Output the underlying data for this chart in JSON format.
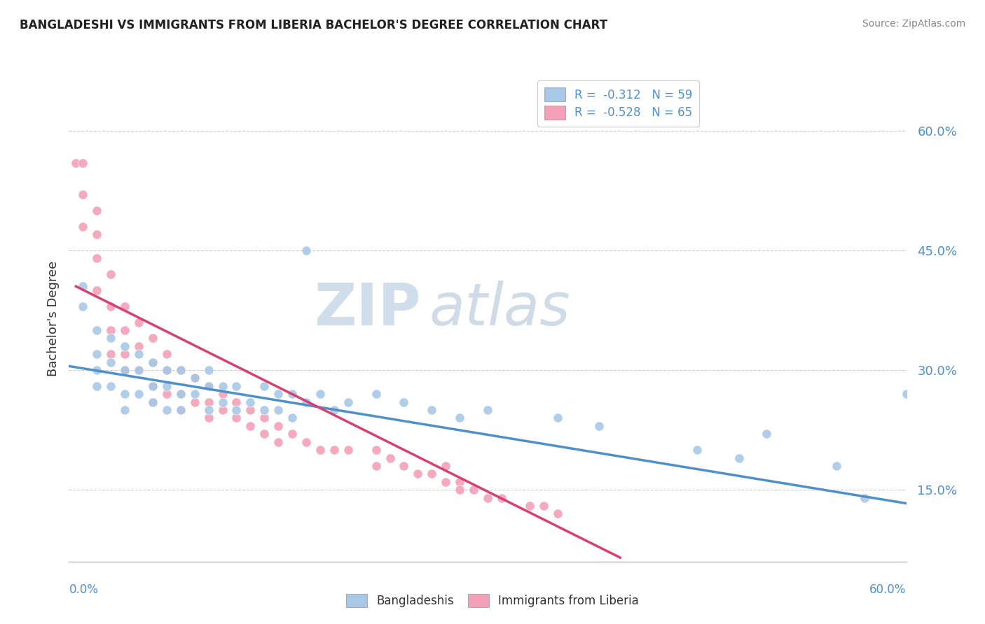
{
  "title": "BANGLADESHI VS IMMIGRANTS FROM LIBERIA BACHELOR'S DEGREE CORRELATION CHART",
  "source": "Source: ZipAtlas.com",
  "ylabel": "Bachelor's Degree",
  "ytick_labels": [
    "15.0%",
    "30.0%",
    "45.0%",
    "60.0%"
  ],
  "ytick_values": [
    0.15,
    0.3,
    0.45,
    0.6
  ],
  "xlim": [
    0.0,
    0.6
  ],
  "ylim": [
    0.06,
    0.67
  ],
  "blue_color": "#a8c8e8",
  "pink_color": "#f4a0b8",
  "blue_line_color": "#5090c8",
  "pink_line_color": "#d84070",
  "watermark_zip": "ZIP",
  "watermark_atlas": "atlas",
  "blue_trend_x0": 0.0,
  "blue_trend_y0": 0.305,
  "blue_trend_x1": 0.6,
  "blue_trend_y1": 0.133,
  "pink_trend_x0": 0.005,
  "pink_trend_y0": 0.405,
  "pink_trend_x1": 0.395,
  "pink_trend_y1": 0.065,
  "bangladeshi_x": [
    0.01,
    0.01,
    0.02,
    0.02,
    0.02,
    0.02,
    0.03,
    0.03,
    0.03,
    0.04,
    0.04,
    0.04,
    0.04,
    0.05,
    0.05,
    0.05,
    0.06,
    0.06,
    0.06,
    0.07,
    0.07,
    0.07,
    0.08,
    0.08,
    0.08,
    0.09,
    0.09,
    0.1,
    0.1,
    0.1,
    0.11,
    0.11,
    0.12,
    0.12,
    0.13,
    0.14,
    0.14,
    0.15,
    0.15,
    0.16,
    0.16,
    0.17,
    0.18,
    0.19,
    0.2,
    0.22,
    0.24,
    0.26,
    0.28,
    0.3,
    0.35,
    0.38,
    0.45,
    0.48,
    0.5,
    0.55,
    0.57,
    0.6,
    0.17
  ],
  "bangladeshi_y": [
    0.405,
    0.38,
    0.35,
    0.32,
    0.3,
    0.28,
    0.34,
    0.31,
    0.28,
    0.33,
    0.3,
    0.27,
    0.25,
    0.32,
    0.3,
    0.27,
    0.31,
    0.28,
    0.26,
    0.3,
    0.28,
    0.25,
    0.3,
    0.27,
    0.25,
    0.29,
    0.27,
    0.3,
    0.28,
    0.25,
    0.28,
    0.26,
    0.28,
    0.25,
    0.26,
    0.28,
    0.25,
    0.27,
    0.25,
    0.27,
    0.24,
    0.26,
    0.27,
    0.25,
    0.26,
    0.27,
    0.26,
    0.25,
    0.24,
    0.25,
    0.24,
    0.23,
    0.2,
    0.19,
    0.22,
    0.18,
    0.14,
    0.27,
    0.45
  ],
  "liberia_x": [
    0.005,
    0.01,
    0.01,
    0.01,
    0.02,
    0.02,
    0.02,
    0.02,
    0.03,
    0.03,
    0.03,
    0.03,
    0.04,
    0.04,
    0.04,
    0.04,
    0.05,
    0.05,
    0.05,
    0.06,
    0.06,
    0.06,
    0.06,
    0.07,
    0.07,
    0.07,
    0.08,
    0.08,
    0.08,
    0.09,
    0.09,
    0.1,
    0.1,
    0.1,
    0.11,
    0.11,
    0.12,
    0.12,
    0.13,
    0.13,
    0.14,
    0.14,
    0.15,
    0.15,
    0.16,
    0.17,
    0.18,
    0.19,
    0.2,
    0.22,
    0.22,
    0.23,
    0.24,
    0.25,
    0.26,
    0.27,
    0.27,
    0.28,
    0.28,
    0.29,
    0.3,
    0.31,
    0.33,
    0.34,
    0.35
  ],
  "liberia_y": [
    0.56,
    0.56,
    0.52,
    0.48,
    0.5,
    0.47,
    0.44,
    0.4,
    0.42,
    0.38,
    0.35,
    0.32,
    0.38,
    0.35,
    0.32,
    0.3,
    0.36,
    0.33,
    0.3,
    0.34,
    0.31,
    0.28,
    0.26,
    0.32,
    0.3,
    0.27,
    0.3,
    0.27,
    0.25,
    0.29,
    0.26,
    0.28,
    0.26,
    0.24,
    0.27,
    0.25,
    0.26,
    0.24,
    0.25,
    0.23,
    0.24,
    0.22,
    0.23,
    0.21,
    0.22,
    0.21,
    0.2,
    0.2,
    0.2,
    0.2,
    0.18,
    0.19,
    0.18,
    0.17,
    0.17,
    0.16,
    0.18,
    0.16,
    0.15,
    0.15,
    0.14,
    0.14,
    0.13,
    0.13,
    0.12
  ]
}
